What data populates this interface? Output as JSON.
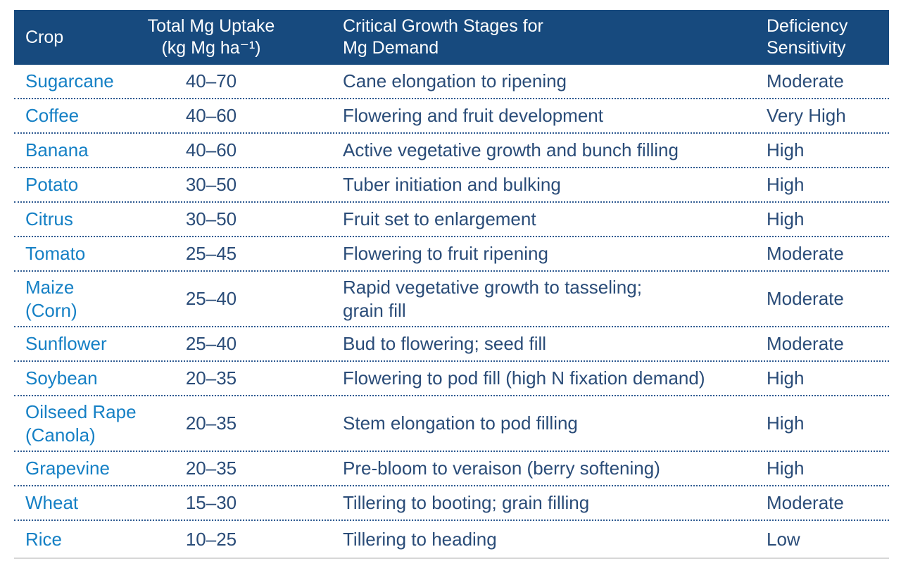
{
  "table": {
    "header": {
      "crop": "Crop",
      "uptake": "Total Mg Uptake\n(kg Mg ha⁻¹)",
      "stages": "Critical Growth Stages for\nMg Demand",
      "sensitivity": "Deficiency\nSensitivity"
    },
    "rows": [
      {
        "crop": "Sugarcane",
        "uptake": "40–70",
        "stages": "Cane elongation to ripening",
        "sensitivity": "Moderate"
      },
      {
        "crop": "Coffee",
        "uptake": "40–60",
        "stages": "Flowering and fruit development",
        "sensitivity": "Very High"
      },
      {
        "crop": "Banana",
        "uptake": "40–60",
        "stages": "Active vegetative growth and bunch filling",
        "sensitivity": "High"
      },
      {
        "crop": "Potato",
        "uptake": "30–50",
        "stages": "Tuber initiation and bulking",
        "sensitivity": "High"
      },
      {
        "crop": "Citrus",
        "uptake": "30–50",
        "stages": "Fruit set to enlargement",
        "sensitivity": "High"
      },
      {
        "crop": "Tomato",
        "uptake": "25–45",
        "stages": "Flowering to fruit ripening",
        "sensitivity": "Moderate"
      },
      {
        "crop": "Maize\n(Corn)",
        "uptake": "25–40",
        "stages": "Rapid vegetative growth to tasseling;\ngrain fill",
        "sensitivity": "Moderate"
      },
      {
        "crop": "Sunflower",
        "uptake": "25–40",
        "stages": "Bud to flowering; seed fill",
        "sensitivity": "Moderate"
      },
      {
        "crop": "Soybean",
        "uptake": "20–35",
        "stages": "Flowering to pod fill (high N fixation demand)",
        "sensitivity": "High"
      },
      {
        "crop": "Oilseed Rape\n(Canola)",
        "uptake": "20–35",
        "stages": "Stem elongation to pod filling",
        "sensitivity": "High"
      },
      {
        "crop": "Grapevine",
        "uptake": "20–35",
        "stages": "Pre-bloom to veraison (berry softening)",
        "sensitivity": "High"
      },
      {
        "crop": "Wheat",
        "uptake": "15–30",
        "stages": "Tillering to booting; grain filling",
        "sensitivity": "Moderate"
      },
      {
        "crop": "Rice",
        "uptake": "10–25",
        "stages": "Tillering to heading",
        "sensitivity": "Low"
      }
    ]
  },
  "colors": {
    "header_background": "#174A7E",
    "header_text": "#FFFFFF",
    "crop_name_blue": "#1580C5",
    "body_text": "#2A4C78",
    "dotted_divider": "#2E5A91",
    "bottom_rule": "#D7D7D7"
  }
}
